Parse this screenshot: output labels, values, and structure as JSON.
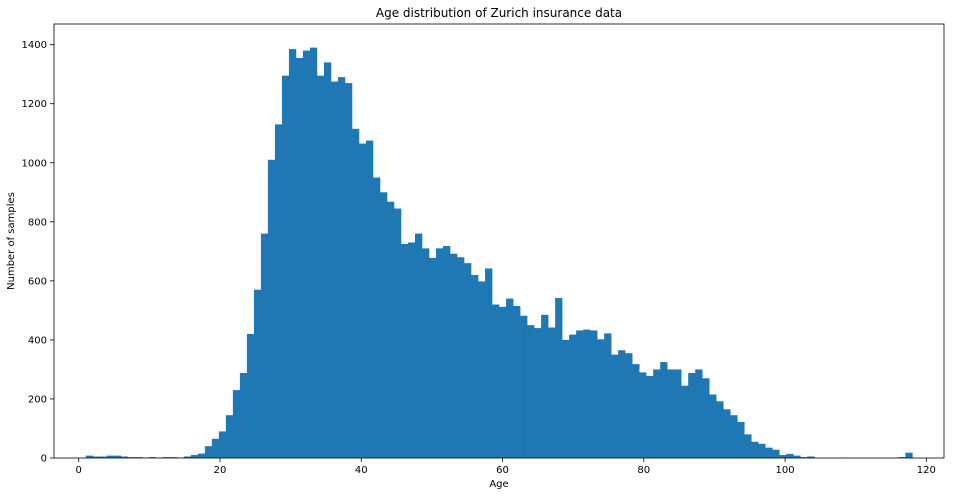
{
  "chart_data": {
    "type": "bar",
    "title": "Age distribution of Zurich insurance data",
    "xlabel": "Age",
    "ylabel": "Number of samples",
    "xlim": [
      -3.5,
      122.5
    ],
    "ylim": [
      0,
      1470
    ],
    "xticks": [
      0,
      20,
      40,
      60,
      80,
      100,
      120
    ],
    "yticks": [
      0,
      200,
      400,
      600,
      800,
      1000,
      1200,
      1400
    ],
    "bar_color": "#1f77b4",
    "grid": false,
    "bin_start": 1,
    "bin_width": 0.9917,
    "values": [
      8,
      5,
      5,
      8,
      8,
      5,
      3,
      3,
      1,
      3,
      1,
      3,
      3,
      1,
      5,
      10,
      15,
      40,
      65,
      90,
      145,
      230,
      288,
      420,
      570,
      760,
      1010,
      1130,
      1295,
      1385,
      1355,
      1380,
      1390,
      1295,
      1340,
      1275,
      1290,
      1270,
      1115,
      1065,
      1075,
      950,
      900,
      868,
      845,
      725,
      730,
      760,
      710,
      678,
      710,
      718,
      692,
      680,
      660,
      620,
      598,
      642,
      520,
      512,
      540,
      515,
      482,
      450,
      440,
      485,
      442,
      542,
      400,
      418,
      432,
      435,
      432,
      402,
      422,
      350,
      365,
      355,
      318,
      290,
      278,
      300,
      325,
      300,
      300,
      245,
      288,
      300,
      270,
      215,
      192,
      165,
      145,
      122,
      80,
      55,
      48,
      35,
      28,
      10,
      14,
      8,
      3,
      5,
      0,
      0,
      0,
      0,
      1,
      0,
      0,
      0,
      0,
      0,
      0,
      0,
      3,
      18
    ]
  }
}
